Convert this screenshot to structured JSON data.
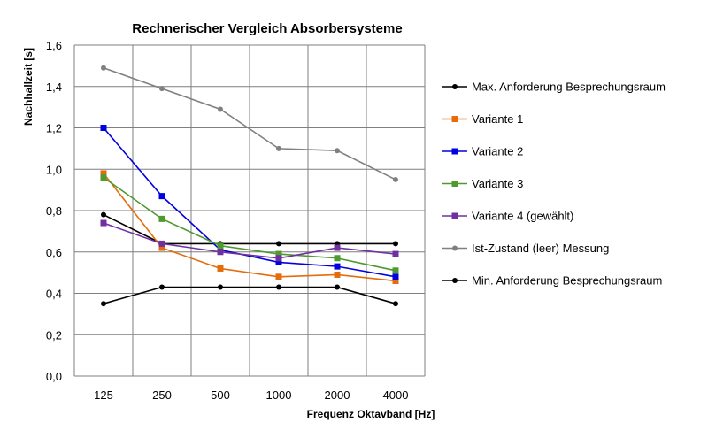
{
  "chart_data": {
    "type": "line",
    "title": "Rechnerischer Vergleich Absorbersysteme",
    "xlabel": "Frequenz Oktavband [Hz]",
    "ylabel": "Nachhallzeit [s]",
    "categories": [
      "125",
      "250",
      "500",
      "1000",
      "2000",
      "4000"
    ],
    "ylim": [
      0,
      1.6
    ],
    "yticks": [
      "0,0",
      "0,2",
      "0,4",
      "0,6",
      "0,8",
      "1,0",
      "1,2",
      "1,4",
      "1,6"
    ],
    "grid": true,
    "legend_position": "right",
    "series": [
      {
        "name": "Max. Anforderung Besprechungsraum",
        "values": [
          0.78,
          0.64,
          0.64,
          0.64,
          0.64,
          0.64
        ],
        "color": "#000000",
        "marker": "circle"
      },
      {
        "name": "Variante 1",
        "values": [
          0.98,
          0.62,
          0.52,
          0.48,
          0.49,
          0.46
        ],
        "color": "#E46C0A",
        "marker": "square"
      },
      {
        "name": "Variante 2",
        "values": [
          1.2,
          0.87,
          0.61,
          0.55,
          0.53,
          0.48
        ],
        "color": "#0000E0",
        "marker": "square"
      },
      {
        "name": "Variante 3",
        "values": [
          0.96,
          0.76,
          0.63,
          0.59,
          0.57,
          0.51
        ],
        "color": "#4E9A2E",
        "marker": "square"
      },
      {
        "name": "Variante 4 (gewählt)",
        "values": [
          0.74,
          0.64,
          0.6,
          0.57,
          0.62,
          0.59
        ],
        "color": "#7030A0",
        "marker": "square"
      },
      {
        "name": "Ist-Zustand (leer) Messung",
        "values": [
          1.49,
          1.39,
          1.29,
          1.1,
          1.09,
          0.95
        ],
        "color": "#808080",
        "marker": "circle"
      },
      {
        "name": "Min. Anforderung Besprechungsraum",
        "values": [
          0.35,
          0.43,
          0.43,
          0.43,
          0.43,
          0.35
        ],
        "color": "#000000",
        "marker": "circle"
      }
    ]
  }
}
